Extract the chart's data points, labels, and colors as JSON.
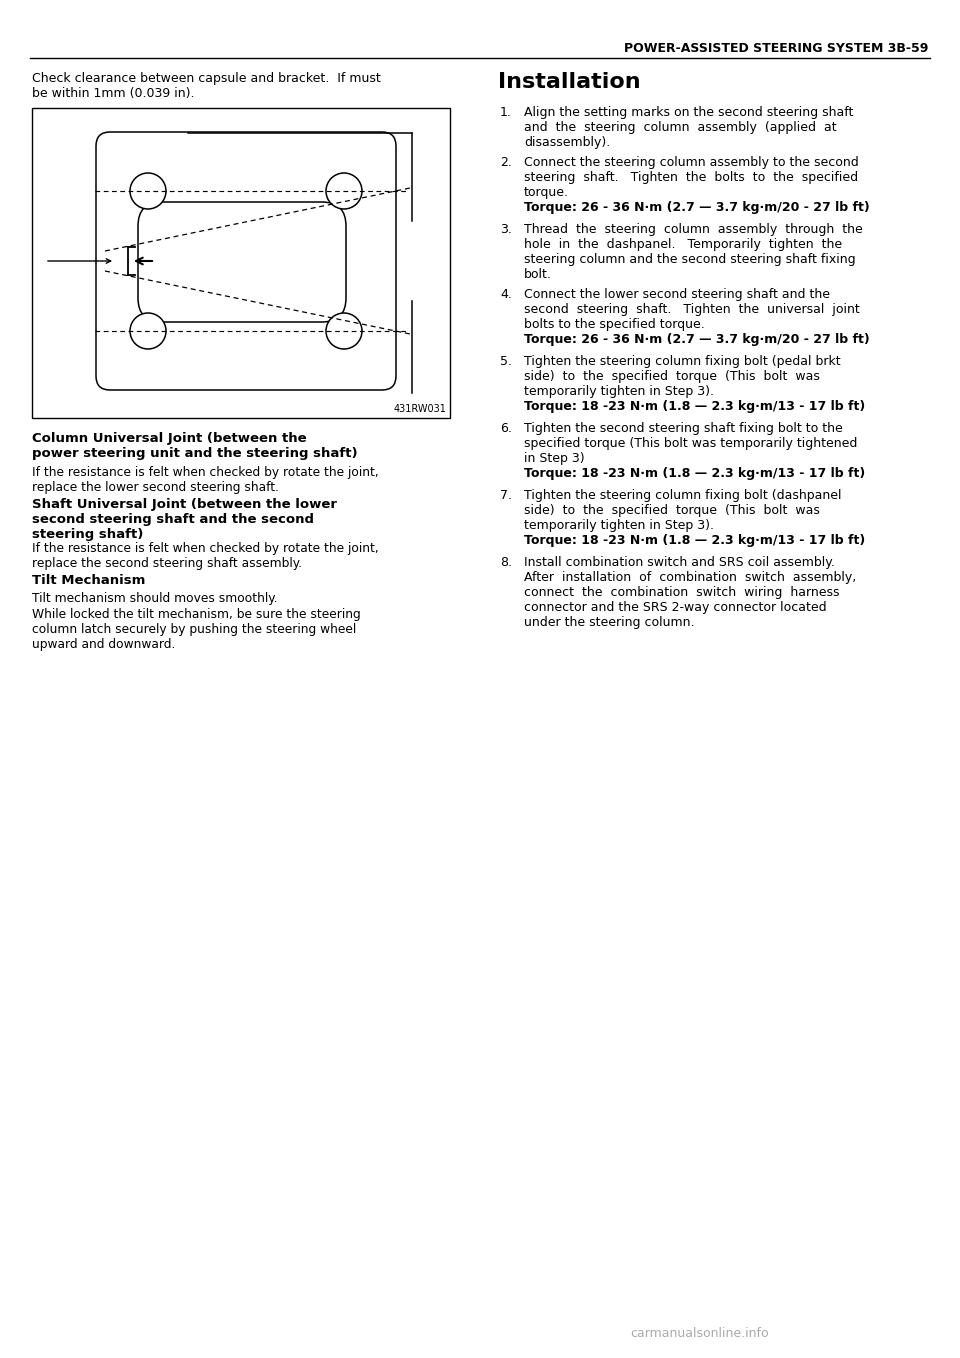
{
  "page_header": "POWER-ASSISTED STEERING SYSTEM 3B-59",
  "left_intro": "Check clearance between capsule and bracket.  If must\nbe within 1mm (0.039 in).",
  "figure_label": "431RW031",
  "section1_title": "Column Universal Joint (between the\npower steering unit and the steering shaft)",
  "section1_body": "If the resistance is felt when checked by rotate the joint,\nreplace the lower second steering shaft.",
  "section2_title": "Shaft Universal Joint (between the lower\nsecond steering shaft and the second\nsteering shaft)",
  "section2_body": "If the resistance is felt when checked by rotate the joint,\nreplace the second steering shaft assembly.",
  "section3_title": "Tilt Mechanism",
  "section3_body1": "Tilt mechanism should moves smoothly.",
  "section3_body2": "While locked the tilt mechanism, be sure the steering\ncolumn latch securely by pushing the steering wheel\nupward and downward.",
  "install_title": "Installation",
  "items": [
    {
      "num": "1.",
      "text": "Align the setting marks on the second steering shaft\nand  the  steering  column  assembly  (applied  at\ndisassembly).",
      "torque": null
    },
    {
      "num": "2.",
      "text": "Connect the steering column assembly to the second\nsteering  shaft.   Tighten  the  bolts  to  the  specified\ntorque.",
      "torque": "Torque: 26 - 36 N·m (2.7 — 3.7 kg·m/20 - 27 lb ft)"
    },
    {
      "num": "3.",
      "text": "Thread  the  steering  column  assembly  through  the\nhole  in  the  dashpanel.   Temporarily  tighten  the\nsteering column and the second steering shaft fixing\nbolt.",
      "torque": null
    },
    {
      "num": "4.",
      "text": "Connect the lower second steering shaft and the\nsecond  steering  shaft.   Tighten  the  universal  joint\nbolts to the specified torque.",
      "torque": "Torque: 26 - 36 N·m (2.7 — 3.7 kg·m/20 - 27 lb ft)"
    },
    {
      "num": "5.",
      "text": "Tighten the steering column fixing bolt (pedal brkt\nside)  to  the  specified  torque  (This  bolt  was\ntemporarily tighten in Step 3).",
      "torque": "Torque: 18 -23 N·m (1.8 — 2.3 kg·m/13 - 17 lb ft)"
    },
    {
      "num": "6.",
      "text": "Tighten the second steering shaft fixing bolt to the\nspecified torque (This bolt was temporarily tightened\nin Step 3)",
      "torque": "Torque: 18 -23 N·m (1.8 — 2.3 kg·m/13 - 17 lb ft)"
    },
    {
      "num": "7.",
      "text": "Tighten the steering column fixing bolt (dashpanel\nside)  to  the  specified  torque  (This  bolt  was\ntemporarily tighten in Step 3).",
      "torque": "Torque: 18 -23 N·m (1.8 — 2.3 kg·m/13 - 17 lb ft)"
    },
    {
      "num": "8.",
      "text": "Install combination switch and SRS coil assembly.\nAfter  installation  of  combination  switch  assembly,\nconnect  the  combination  switch  wiring  harness\nconnector and the SRS 2-way connector located\nunder the steering column.",
      "torque": null
    }
  ],
  "footer_text": "carmanualsonline.info"
}
